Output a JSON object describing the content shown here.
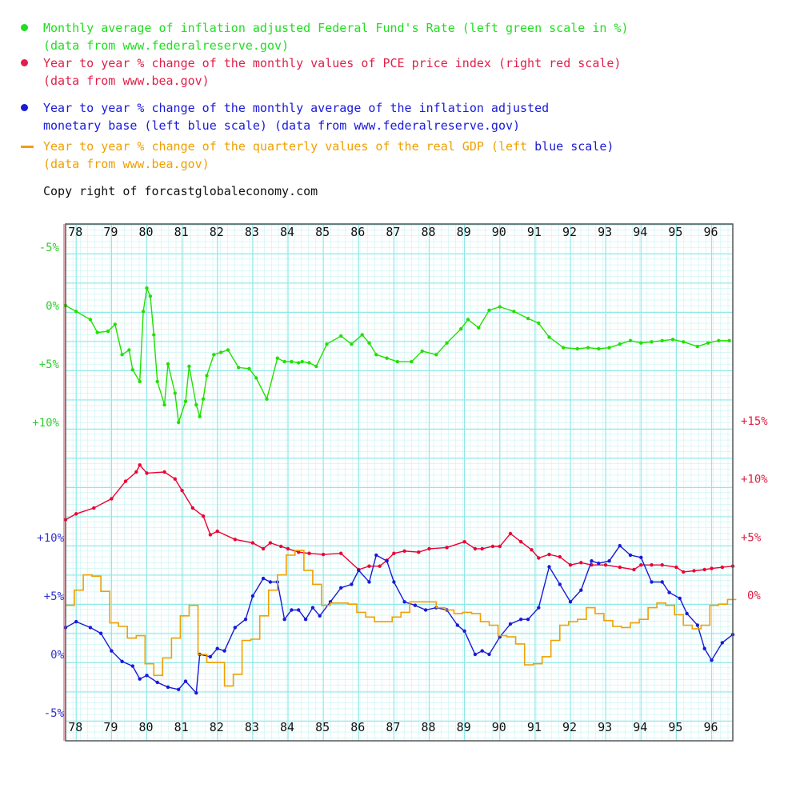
{
  "colors": {
    "green": "#22e000",
    "red": "#ee0033",
    "blue": "#1a1ad8",
    "orange": "#f0a000",
    "grid": "#8fe8e8",
    "text": "#111111"
  },
  "legend": [
    {
      "marker": "dot",
      "color": "#22dd22",
      "line1": "Monthly average of inflation adjusted Federal Fund's Rate (left green scale in %)",
      "line2": "(data from www.federalreserve.gov)"
    },
    {
      "marker": "dot",
      "color": "#e0204a",
      "line1": "Year to year % change of the monthly values of PCE price index (right red scale)",
      "line2": "(data from www.bea.gov)"
    },
    {
      "marker": "dot",
      "color": "#1a1ad8",
      "line1": "Year to year % change of the monthly average of the inflation adjusted",
      "line2": "monetary base (left blue scale) (data from www.federalreserve.gov)"
    },
    {
      "marker": "dash",
      "color": "#f0a000",
      "line1": "Year to year % change of the quarterly values of the real GDP (left",
      "line1_suffix": "blue scale)",
      "line2": "(data from www.bea.gov)"
    }
  ],
  "copyright": "Copy right of forcastglobaleconomy.com",
  "chart_data": {
    "type": "line",
    "x_tick_labels": [
      "78",
      "79",
      "80",
      "81",
      "82",
      "83",
      "84",
      "85",
      "86",
      "87",
      "88",
      "89",
      "90",
      "91",
      "92",
      "93",
      "94",
      "95",
      "96"
    ],
    "x_tick_years": [
      1978,
      1979,
      1980,
      1981,
      1982,
      1983,
      1984,
      1985,
      1986,
      1987,
      1988,
      1989,
      1990,
      1991,
      1992,
      1993,
      1994,
      1995,
      1996
    ],
    "x_range": [
      1977.7,
      1996.6
    ],
    "green_axis": {
      "ticks": [
        "-5%",
        "0%",
        "+5%",
        "+10%"
      ],
      "values": [
        -5,
        0,
        5,
        10
      ],
      "inverted": true
    },
    "red_axis": {
      "ticks": [
        "+15%",
        "+10%",
        "+5%",
        "0%"
      ],
      "values": [
        15,
        10,
        5,
        0
      ]
    },
    "blue_axis": {
      "ticks": [
        "+10%",
        "+5%",
        "0%",
        "-5%"
      ],
      "values": [
        10,
        5,
        0,
        -5
      ]
    },
    "series": [
      {
        "name": "Monthly average of inflation adjusted Federal Fund's Rate",
        "color": "green",
        "axis": "green",
        "x": [
          1977.7,
          1978.0,
          1978.4,
          1978.6,
          1978.9,
          1979.1,
          1979.3,
          1979.5,
          1979.6,
          1979.8,
          1979.9,
          1980.0,
          1980.1,
          1980.2,
          1980.3,
          1980.5,
          1980.6,
          1980.8,
          1980.9,
          1981.1,
          1981.2,
          1981.4,
          1981.5,
          1981.6,
          1981.7,
          1981.9,
          1982.1,
          1982.3,
          1982.6,
          1982.9,
          1983.1,
          1983.4,
          1983.7,
          1983.9,
          1984.1,
          1984.3,
          1984.4,
          1984.6,
          1984.8,
          1985.1,
          1985.5,
          1985.8,
          1986.1,
          1986.3,
          1986.5,
          1986.8,
          1987.1,
          1987.5,
          1987.8,
          1988.2,
          1988.5,
          1988.9,
          1989.1,
          1989.4,
          1989.7,
          1990.0,
          1990.4,
          1990.8,
          1991.1,
          1991.4,
          1991.8,
          1992.2,
          1992.5,
          1992.8,
          1993.1,
          1993.4,
          1993.7,
          1994.0,
          1994.3,
          1994.6,
          1994.9,
          1995.2,
          1995.6,
          1995.9,
          1996.2,
          1996.5
        ],
        "y": [
          0,
          0.5,
          1.2,
          2.3,
          2.2,
          1.6,
          4.2,
          3.8,
          5.5,
          6.5,
          0.5,
          -1.5,
          -0.8,
          2.5,
          6.5,
          8.5,
          5.0,
          7.5,
          10.0,
          8.2,
          5.2,
          8.5,
          9.5,
          8.0,
          6.0,
          4.2,
          4.0,
          3.8,
          5.3,
          5.4,
          6.2,
          8.0,
          4.5,
          4.8,
          4.8,
          4.9,
          4.8,
          4.9,
          5.2,
          3.3,
          2.6,
          3.3,
          2.5,
          3.2,
          4.2,
          4.5,
          4.8,
          4.8,
          3.9,
          4.2,
          3.2,
          2.0,
          1.2,
          1.9,
          0.4,
          0.1,
          0.5,
          1.1,
          1.5,
          2.7,
          3.6,
          3.7,
          3.6,
          3.7,
          3.6,
          3.3,
          3.0,
          3.2,
          3.1,
          3.0,
          2.9,
          3.1,
          3.5,
          3.2,
          3.0,
          3.0
        ]
      },
      {
        "name": "Year to year % change of the monthly values of PCE price index",
        "color": "red",
        "axis": "red",
        "x": [
          1977.7,
          1978.0,
          1978.5,
          1979.0,
          1979.4,
          1979.7,
          1979.8,
          1980.0,
          1980.5,
          1980.8,
          1981.0,
          1981.3,
          1981.6,
          1981.8,
          1982.0,
          1982.5,
          1983.0,
          1983.3,
          1983.5,
          1983.8,
          1984.0,
          1984.3,
          1984.6,
          1985.0,
          1985.5,
          1986.0,
          1986.3,
          1986.6,
          1986.8,
          1987.0,
          1987.3,
          1987.7,
          1988.0,
          1988.5,
          1989.0,
          1989.3,
          1989.5,
          1989.8,
          1990.0,
          1990.3,
          1990.6,
          1990.9,
          1991.1,
          1991.4,
          1991.7,
          1992.0,
          1992.3,
          1992.6,
          1993.0,
          1993.4,
          1993.8,
          1994.0,
          1994.3,
          1994.6,
          1995.0,
          1995.2,
          1995.5,
          1995.8,
          1996.0,
          1996.3,
          1996.6
        ],
        "y": [
          6.5,
          7.0,
          7.5,
          8.3,
          9.8,
          10.6,
          11.2,
          10.5,
          10.6,
          10.0,
          9.0,
          7.5,
          6.8,
          5.2,
          5.5,
          4.8,
          4.5,
          4.0,
          4.5,
          4.2,
          4.0,
          3.7,
          3.6,
          3.5,
          3.6,
          2.2,
          2.5,
          2.5,
          3.0,
          3.6,
          3.8,
          3.7,
          4.0,
          4.1,
          4.6,
          4.0,
          4.0,
          4.2,
          4.2,
          5.3,
          4.6,
          3.9,
          3.2,
          3.5,
          3.3,
          2.6,
          2.8,
          2.6,
          2.6,
          2.4,
          2.2,
          2.6,
          2.6,
          2.6,
          2.4,
          2.0,
          2.1,
          2.2,
          2.3,
          2.4,
          2.5
        ]
      },
      {
        "name": "Year to year % change of the monthly average of the inflation adjusted monetary base",
        "color": "blue",
        "axis": "blue",
        "x": [
          1977.7,
          1978.0,
          1978.4,
          1978.7,
          1979.0,
          1979.3,
          1979.6,
          1979.8,
          1980.0,
          1980.3,
          1980.6,
          1980.9,
          1981.1,
          1981.4,
          1981.5,
          1981.8,
          1982.0,
          1982.2,
          1982.5,
          1982.8,
          1983.0,
          1983.3,
          1983.5,
          1983.7,
          1983.9,
          1984.1,
          1984.3,
          1984.5,
          1984.7,
          1984.9,
          1985.2,
          1985.5,
          1985.8,
          1986.0,
          1986.3,
          1986.5,
          1986.8,
          1987.0,
          1987.3,
          1987.6,
          1987.9,
          1988.2,
          1988.5,
          1988.8,
          1989.0,
          1989.3,
          1989.5,
          1989.7,
          1990.0,
          1990.3,
          1990.6,
          1990.8,
          1991.1,
          1991.4,
          1991.7,
          1992.0,
          1992.3,
          1992.6,
          1992.8,
          1993.1,
          1993.4,
          1993.7,
          1994.0,
          1994.3,
          1994.6,
          1994.8,
          1995.1,
          1995.3,
          1995.6,
          1995.8,
          1996.0,
          1996.3,
          1996.6
        ],
        "y": [
          2.3,
          2.8,
          2.3,
          1.8,
          0.3,
          -0.6,
          -1.0,
          -2.1,
          -1.8,
          -2.4,
          -2.8,
          -3.0,
          -2.3,
          -3.3,
          0.0,
          -0.2,
          0.5,
          0.3,
          2.3,
          3.0,
          5.0,
          6.5,
          6.2,
          6.2,
          3.0,
          3.8,
          3.8,
          3.0,
          4.0,
          3.3,
          4.5,
          5.7,
          6.0,
          7.2,
          6.2,
          8.5,
          8.0,
          6.2,
          4.5,
          4.2,
          3.8,
          4.0,
          3.8,
          2.5,
          2.0,
          0.0,
          0.3,
          0.0,
          1.5,
          2.6,
          3.0,
          3.0,
          4.0,
          7.5,
          6.0,
          4.5,
          5.5,
          8.0,
          7.8,
          8.0,
          9.3,
          8.5,
          8.3,
          6.2,
          6.2,
          5.3,
          4.8,
          3.5,
          2.5,
          0.5,
          -0.5,
          1.0,
          1.7
        ]
      },
      {
        "name": "Year to year % change of the quarterly values of the real GDP",
        "color": "orange",
        "axis": "blue",
        "x": [
          1977.7,
          1977.95,
          1978.2,
          1978.45,
          1978.7,
          1978.95,
          1979.2,
          1979.45,
          1979.7,
          1979.95,
          1980.2,
          1980.45,
          1980.7,
          1980.95,
          1981.2,
          1981.45,
          1981.7,
          1981.95,
          1982.2,
          1982.45,
          1982.7,
          1982.95,
          1983.2,
          1983.45,
          1983.7,
          1983.95,
          1984.2,
          1984.45,
          1984.7,
          1984.95,
          1985.2,
          1985.45,
          1985.7,
          1985.95,
          1986.2,
          1986.45,
          1986.7,
          1986.95,
          1987.2,
          1987.45,
          1987.7,
          1987.95,
          1988.2,
          1988.45,
          1988.7,
          1988.95,
          1989.2,
          1989.45,
          1989.7,
          1989.95,
          1990.2,
          1990.45,
          1990.7,
          1990.95,
          1991.2,
          1991.45,
          1991.7,
          1991.95,
          1992.2,
          1992.45,
          1992.7,
          1992.95,
          1993.2,
          1993.45,
          1993.7,
          1993.95,
          1994.2,
          1994.45,
          1994.7,
          1994.95,
          1995.2,
          1995.45,
          1995.7,
          1995.95,
          1996.2,
          1996.45
        ],
        "y": [
          4.2,
          5.5,
          6.8,
          6.7,
          5.4,
          2.7,
          2.4,
          1.4,
          1.6,
          -0.8,
          -1.8,
          -0.3,
          1.4,
          3.3,
          4.2,
          0.0,
          -0.7,
          -0.7,
          -2.7,
          -1.7,
          1.2,
          1.3,
          3.3,
          5.5,
          6.8,
          8.5,
          8.9,
          7.2,
          6.0,
          4.2,
          4.4,
          4.4,
          4.3,
          3.6,
          3.2,
          2.8,
          2.8,
          3.2,
          3.6,
          4.5,
          4.5,
          4.5,
          4.0,
          3.8,
          3.5,
          3.6,
          3.5,
          2.8,
          2.5,
          1.6,
          1.5,
          0.9,
          -0.9,
          -0.8,
          -0.2,
          1.2,
          2.5,
          2.8,
          3.0,
          4.0,
          3.5,
          2.9,
          2.4,
          2.3,
          2.7,
          3.0,
          4.0,
          4.4,
          4.2,
          3.4,
          2.5,
          2.2,
          2.5,
          4.2,
          4.3,
          4.7
        ]
      }
    ]
  }
}
